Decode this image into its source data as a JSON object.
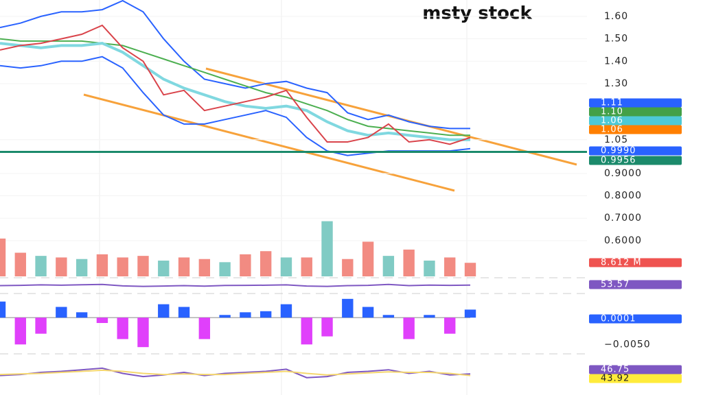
{
  "chart_data": [
    {
      "type": "line",
      "title": "msty stock",
      "ylim": [
        0.45,
        1.673
      ],
      "yticks": [
        {
          "value": 1.6,
          "label": "1.60"
        },
        {
          "value": 1.5,
          "label": "1.50"
        },
        {
          "value": 1.4,
          "label": "1.40"
        },
        {
          "value": 1.3,
          "label": "1.30"
        },
        {
          "value": 1.05,
          "label": "1.05"
        },
        {
          "value": 0.9,
          "label": "0.9000"
        },
        {
          "value": 0.8,
          "label": "0.8000"
        },
        {
          "value": 0.7,
          "label": "0.7000"
        },
        {
          "value": 0.6,
          "label": "0.6000"
        }
      ],
      "grid": true,
      "series": [
        {
          "color": "#2962ff",
          "values": [
            1.55,
            1.57,
            1.6,
            1.62,
            1.62,
            1.63,
            1.67,
            1.62,
            1.5,
            1.4,
            1.32,
            1.3,
            1.28,
            1.3,
            1.31,
            1.28,
            1.26,
            1.17,
            1.14,
            1.16,
            1.13,
            1.11,
            1.1,
            1.1
          ]
        },
        {
          "color": "#2962ff",
          "values": [
            1.38,
            1.37,
            1.38,
            1.4,
            1.4,
            1.42,
            1.37,
            1.26,
            1.16,
            1.12,
            1.12,
            1.14,
            1.16,
            1.18,
            1.15,
            1.06,
            1.0,
            0.98,
            0.99,
            1.0,
            1.0,
            1.0,
            1.0,
            1.01
          ]
        },
        {
          "color": "#4caf50",
          "values": [
            1.5,
            1.49,
            1.49,
            1.49,
            1.49,
            1.48,
            1.47,
            1.44,
            1.41,
            1.38,
            1.35,
            1.32,
            1.29,
            1.26,
            1.24,
            1.21,
            1.18,
            1.14,
            1.11,
            1.1,
            1.09,
            1.08,
            1.07,
            1.07
          ]
        },
        {
          "color": "#80d8e0",
          "values": [
            1.48,
            1.47,
            1.46,
            1.47,
            1.47,
            1.48,
            1.44,
            1.38,
            1.32,
            1.28,
            1.25,
            1.22,
            1.2,
            1.19,
            1.2,
            1.18,
            1.13,
            1.09,
            1.07,
            1.08,
            1.07,
            1.06,
            1.05,
            1.05
          ]
        },
        {
          "color": "#d9434a",
          "values": [
            1.45,
            1.47,
            1.48,
            1.5,
            1.52,
            1.56,
            1.46,
            1.4,
            1.25,
            1.27,
            1.18,
            1.2,
            1.22,
            1.24,
            1.27,
            1.15,
            1.04,
            1.04,
            1.06,
            1.12,
            1.04,
            1.05,
            1.03,
            1.06
          ]
        }
      ],
      "hline": 0.9956,
      "hline_color": "#1b8a6b",
      "badges": [
        {
          "value": 1.11,
          "label": "1.11",
          "color": "#2962ff"
        },
        {
          "value": 1.1,
          "label": "1.10",
          "color": "#43a047"
        },
        {
          "value": 1.06,
          "label": "1.06",
          "color": "#4dc9d6"
        },
        {
          "value": 1.06,
          "label": "1.06",
          "color": "#ff7f00"
        },
        {
          "value": 0.999,
          "label": "0.9990",
          "color": "#2962ff"
        },
        {
          "value": 0.9956,
          "label": "0.9956",
          "color": "#1b8a6b"
        }
      ]
    },
    {
      "type": "bar",
      "ylim": [
        0,
        47
      ],
      "values": [
        24,
        15,
        13,
        12,
        11,
        14,
        12,
        13,
        10,
        12,
        11,
        9,
        14,
        16,
        12,
        12,
        35,
        11,
        22,
        13,
        17,
        10,
        12,
        8.6
      ],
      "colors": [
        "#f28b82",
        "#f28b82",
        "#80cbc4",
        "#f28b82",
        "#80cbc4",
        "#f28b82",
        "#f28b82",
        "#f28b82",
        "#80cbc4",
        "#f28b82",
        "#f28b82",
        "#80cbc4",
        "#f28b82",
        "#f28b82",
        "#80cbc4",
        "#f28b82",
        "#80cbc4",
        "#f28b82",
        "#f28b82",
        "#80cbc4",
        "#f28b82",
        "#80cbc4",
        "#f28b82",
        "#f28b82"
      ],
      "badges": [
        {
          "value": 8.612,
          "label": "8.612 M",
          "color": "#ef5350"
        }
      ]
    },
    {
      "type": "line",
      "ylim": [
        0,
        100
      ],
      "series": [
        {
          "color": "#7e57c2",
          "values": [
            50,
            52,
            55,
            53,
            56,
            58,
            48,
            45,
            47,
            50,
            46,
            51,
            52,
            53,
            55,
            47,
            45,
            50,
            52,
            58,
            50,
            54,
            52,
            54
          ]
        }
      ],
      "badges": [
        {
          "value": 53.57,
          "label": "53.57",
          "color": "#7e57c2"
        }
      ]
    },
    {
      "type": "bar",
      "ylim": [
        -0.0065,
        0.0045
      ],
      "yticks": [
        {
          "value": -0.005,
          "label": "−0.0050"
        }
      ],
      "values": [
        0.003,
        -0.005,
        -0.003,
        0.002,
        0.001,
        -0.001,
        -0.004,
        -0.0055,
        0.0025,
        0.002,
        -0.004,
        0.0005,
        0.001,
        0.0012,
        0.0025,
        -0.005,
        -0.0035,
        0.0035,
        0.002,
        0.0005,
        -0.004,
        0.0005,
        -0.003,
        0.0015
      ],
      "pos_color": "#2962ff",
      "neg_color": "#e040fb",
      "badges": [
        {
          "value": 0.0001,
          "label": "0.0001",
          "color": "#2962ff"
        }
      ]
    },
    {
      "type": "line",
      "ylim": [
        20,
        80
      ],
      "series": [
        {
          "color": "#7e57c2",
          "values": [
            44,
            46,
            50,
            52,
            55,
            58,
            48,
            42,
            45,
            50,
            44,
            48,
            50,
            52,
            56,
            40,
            42,
            50,
            52,
            55,
            48,
            52,
            45,
            47
          ]
        },
        {
          "color": "#f5d76e",
          "values": [
            46,
            47,
            48,
            50,
            52,
            54,
            52,
            48,
            46,
            47,
            46,
            46,
            48,
            50,
            52,
            48,
            45,
            47,
            49,
            51,
            50,
            50,
            48,
            44
          ]
        }
      ],
      "badges": [
        {
          "value": 46.75,
          "label": "46.75",
          "color": "#7e57c2"
        },
        {
          "value": 43.92,
          "label": "43.92",
          "color": "#ffeb3b"
        }
      ]
    }
  ]
}
